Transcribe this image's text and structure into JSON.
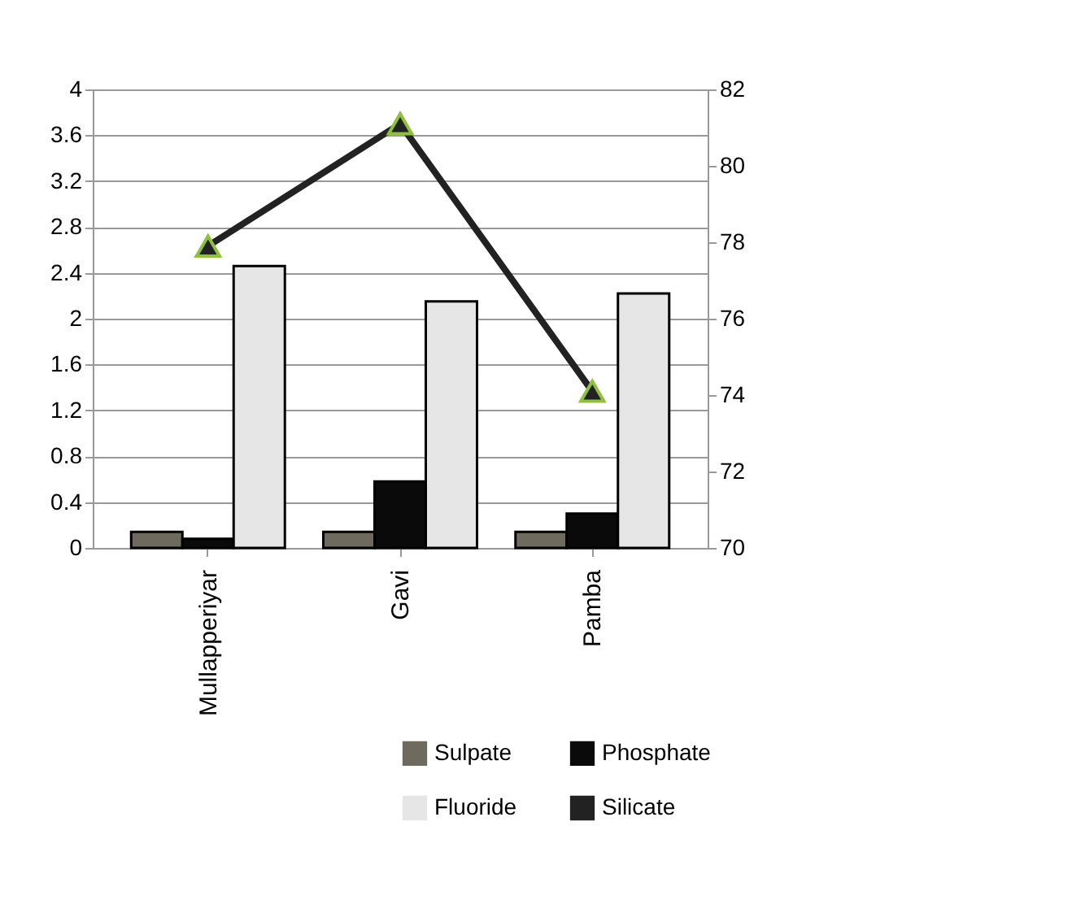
{
  "chart_data": {
    "type": "bar",
    "categories": [
      "Mullapperiyar",
      "Gavi",
      "Pamba"
    ],
    "series": [
      {
        "name": "Sulpate",
        "color": "#6e6a5e",
        "values": [
          0.14,
          0.14,
          0.14
        ]
      },
      {
        "name": "Phosphate",
        "color": "#0a0a0a",
        "values": [
          0.08,
          0.58,
          0.3
        ]
      },
      {
        "name": "Fluoride",
        "color": "#e6e6e6",
        "values": [
          2.46,
          2.15,
          2.22
        ]
      },
      {
        "name": "Silicate",
        "type": "line",
        "axis": "y2",
        "color": "#222222",
        "marker": "triangle",
        "values": [
          77.9,
          81.1,
          74.1
        ]
      }
    ],
    "ylim": [
      0,
      4
    ],
    "yticks": [
      0,
      0.4,
      0.8,
      1.2,
      1.6,
      2,
      2.4,
      2.8,
      3.2,
      3.6,
      4
    ],
    "y2lim": [
      70,
      82
    ],
    "y2ticks": [
      70,
      72,
      74,
      76,
      78,
      80,
      82
    ],
    "grid": "y",
    "legend": "bottom right"
  }
}
